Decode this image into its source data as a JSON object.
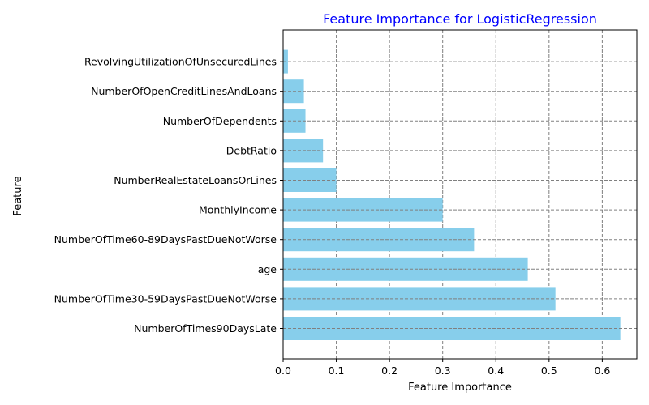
{
  "chart_data": {
    "type": "bar",
    "orientation": "horizontal",
    "title": "Feature Importance for LogisticRegression",
    "xlabel": "Feature Importance",
    "ylabel": "Feature",
    "categories": [
      "NumberOfTimes90DaysLate",
      "NumberOfTime30-59DaysPastDueNotWorse",
      "age",
      "NumberOfTime60-89DaysPastDueNotWorse",
      "MonthlyIncome",
      "NumberRealEstateLoansOrLines",
      "DebtRatio",
      "NumberOfDependents",
      "NumberOfOpenCreditLinesAndLoans",
      "RevolvingUtilizationOfUnsecuredLines"
    ],
    "values": [
      0.634,
      0.512,
      0.46,
      0.359,
      0.3,
      0.1,
      0.075,
      0.042,
      0.039,
      0.009
    ],
    "xlim": [
      0,
      0.665
    ],
    "xticks": [
      0.0,
      0.1,
      0.2,
      0.3,
      0.4,
      0.5,
      0.6
    ],
    "xtick_labels": [
      "0.0",
      "0.1",
      "0.2",
      "0.3",
      "0.4",
      "0.5",
      "0.6"
    ],
    "grid": true,
    "grid_style": "dashed",
    "colors": {
      "bar": "#87ceeb",
      "title": "#0000ff",
      "grid": "#808080",
      "axis": "#000000"
    }
  }
}
